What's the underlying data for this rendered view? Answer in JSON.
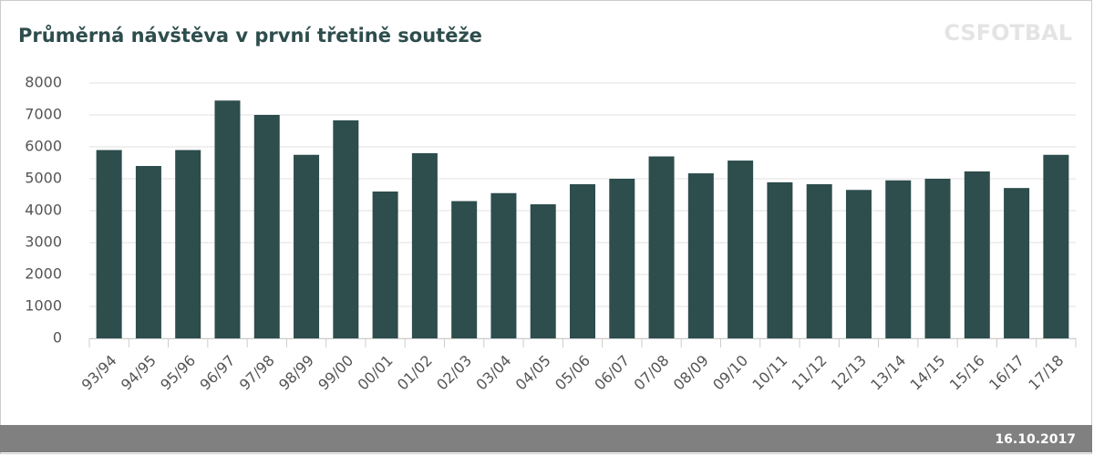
{
  "chart_data": {
    "type": "bar",
    "title": "Průměrná návštěva v první třetině soutěže",
    "watermark": "CSFOTBAL",
    "date": "16.10.2017",
    "categories": [
      "93/94",
      "94/95",
      "95/96",
      "96/97",
      "97/98",
      "98/99",
      "99/00",
      "00/01",
      "01/02",
      "02/03",
      "03/04",
      "04/05",
      "05/06",
      "06/07",
      "07/08",
      "08/09",
      "09/10",
      "10/11",
      "11/12",
      "12/13",
      "13/14",
      "14/15",
      "15/16",
      "16/17",
      "17/18"
    ],
    "values": [
      5900,
      5400,
      5900,
      7450,
      7000,
      5750,
      6830,
      4600,
      5800,
      4300,
      4550,
      4200,
      4830,
      5000,
      5700,
      5170,
      5570,
      4890,
      4830,
      4650,
      4950,
      5000,
      5230,
      4710,
      5750
    ],
    "color": "#2e4d4d",
    "ylim": [
      0,
      8000
    ],
    "yticks": [
      0,
      1000,
      2000,
      3000,
      4000,
      5000,
      6000,
      7000,
      8000
    ],
    "grid": true
  }
}
